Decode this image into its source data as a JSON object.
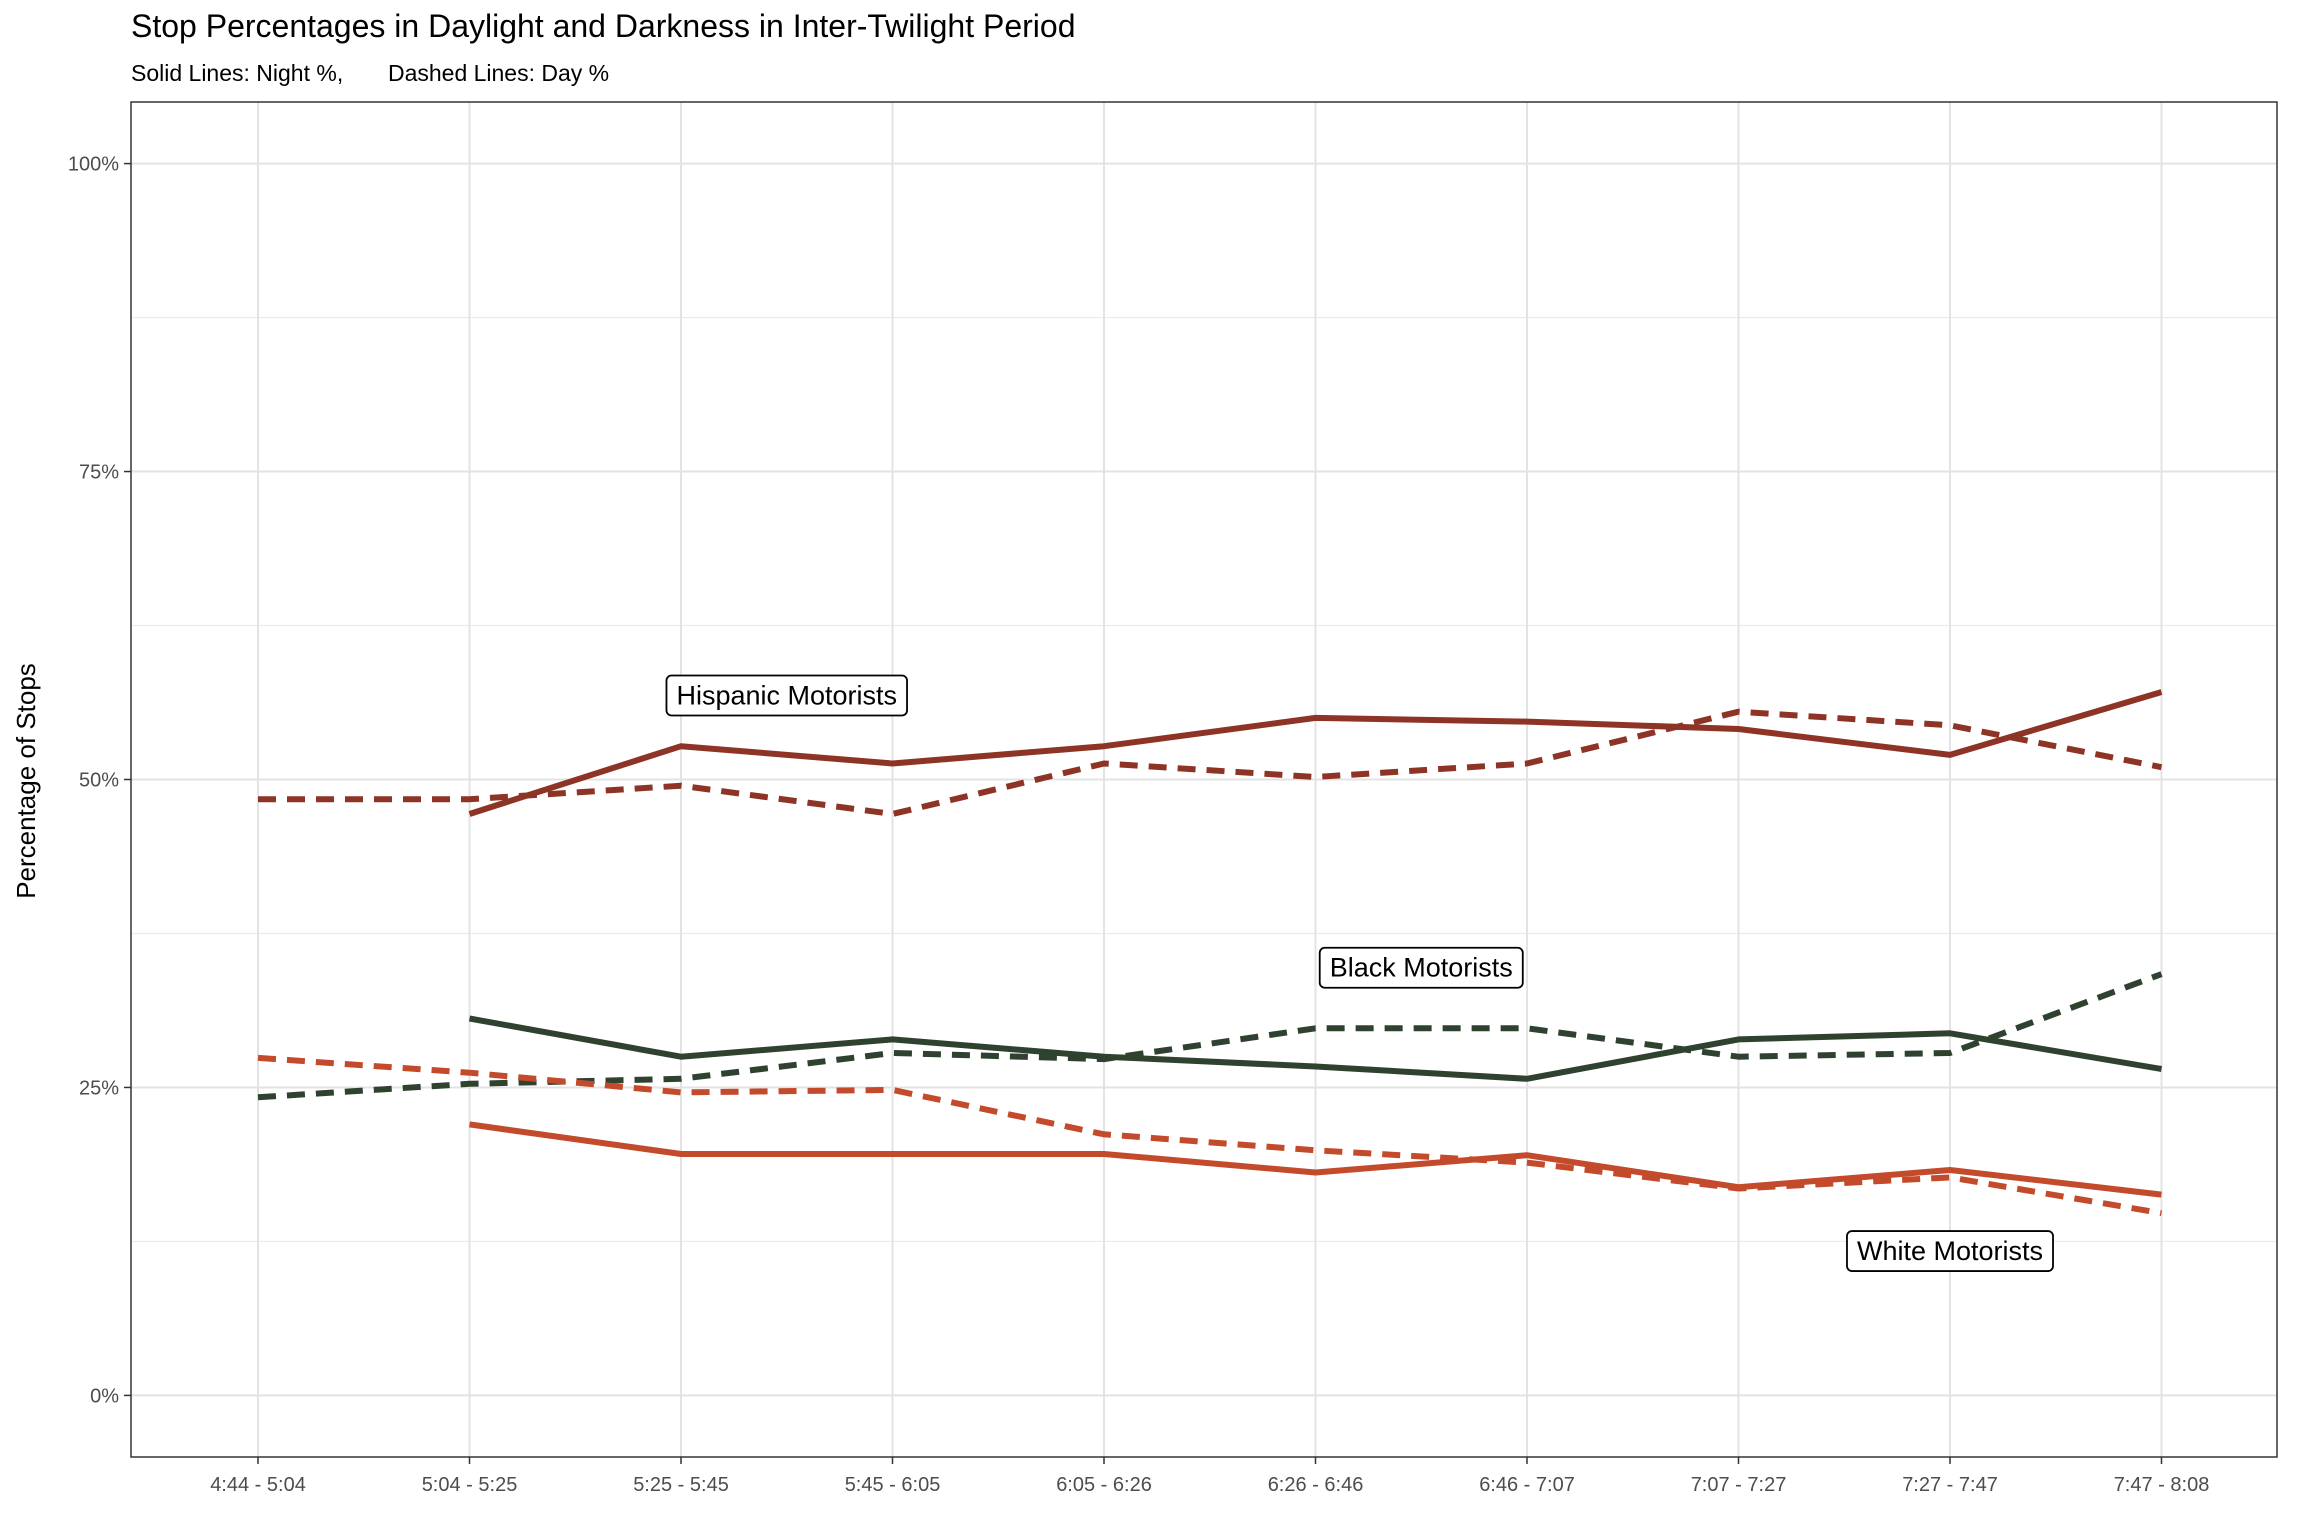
{
  "chart_data": {
    "type": "line",
    "title": "Stop Percentages in Daylight and Darkness in Inter-Twilight Period",
    "subtitle": "Solid Lines: Night %,       Dashed Lines: Day %",
    "xlabel": "",
    "ylabel": "Percentage of Stops",
    "categories": [
      "4:44 - 5:04",
      "5:04 - 5:25",
      "5:25 - 5:45",
      "5:45 - 6:05",
      "6:05 - 6:26",
      "6:26 - 6:46",
      "6:46 - 7:07",
      "7:07 - 7:27",
      "7:27 - 7:47",
      "7:47 - 8:08"
    ],
    "ylim": [
      -0.05,
      1.05
    ],
    "yticks": [
      0,
      0.25,
      0.5,
      0.75,
      1.0
    ],
    "ytick_labels": [
      "0%",
      "25%",
      "50%",
      "75%",
      "100%"
    ],
    "grid": true,
    "legend": "none",
    "series": [
      {
        "group": "Hispanic Motorists",
        "style": "solid",
        "color": "#8E3427",
        "values": [
          null,
          0.472,
          0.527,
          0.513,
          0.527,
          0.55,
          0.547,
          0.541,
          0.52,
          0.571
        ]
      },
      {
        "group": "Hispanic Motorists",
        "style": "dashed",
        "color": "#8E3427",
        "values": [
          0.484,
          0.484,
          0.495,
          0.472,
          0.513,
          0.502,
          0.513,
          0.555,
          0.544,
          0.51
        ]
      },
      {
        "group": "Black Motorists",
        "style": "solid",
        "color": "#2F4230",
        "values": [
          null,
          0.306,
          0.275,
          0.289,
          0.275,
          0.267,
          0.257,
          0.289,
          0.294,
          0.265
        ]
      },
      {
        "group": "Black Motorists",
        "style": "dashed",
        "color": "#2F4230",
        "values": [
          0.242,
          0.253,
          0.257,
          0.278,
          0.273,
          0.298,
          0.298,
          0.275,
          0.278,
          0.342
        ]
      },
      {
        "group": "White Motorists",
        "style": "solid",
        "color": "#C44A2C",
        "values": [
          null,
          0.22,
          0.196,
          0.196,
          0.196,
          0.181,
          0.195,
          0.169,
          0.183,
          0.163
        ]
      },
      {
        "group": "White Motorists",
        "style": "dashed",
        "color": "#C44A2C",
        "values": [
          0.274,
          0.262,
          0.246,
          0.248,
          0.212,
          0.199,
          0.189,
          0.168,
          0.177,
          0.148
        ]
      }
    ],
    "annotations": [
      {
        "text": "Hispanic Motorists",
        "x": "5:45 - 6:05",
        "x_offset": -0.5,
        "y": 0.569
      },
      {
        "text": "Black Motorists",
        "x": "6:26 - 6:46",
        "x_offset": 0.5,
        "y": 0.348
      },
      {
        "text": "White Motorists",
        "x": "7:27 - 7:47",
        "x_offset": 0,
        "y": 0.118
      }
    ]
  }
}
